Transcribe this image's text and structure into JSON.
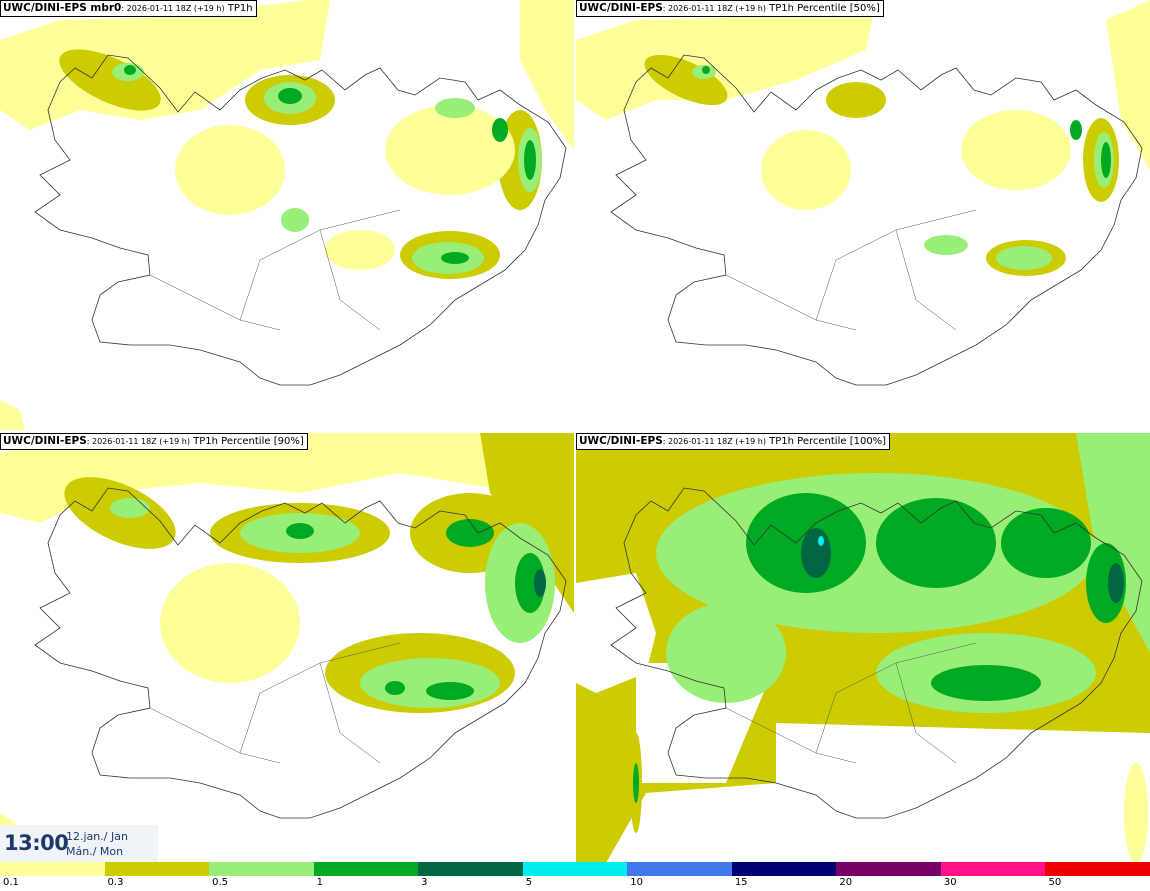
{
  "panels": [
    {
      "model": "UWC/DINI-EPS mbr0",
      "run": ": 2026-01-11 18Z (+19 h)",
      "field": " TP1h"
    },
    {
      "model": "UWC/DINI-EPS",
      "run": ": 2026-01-11 18Z (+19 h)",
      "field": " TP1h Percentile [50%]"
    },
    {
      "model": "UWC/DINI-EPS",
      "run": ": 2026-01-11 18Z (+19 h)",
      "field": " TP1h Percentile [90%]"
    },
    {
      "model": "UWC/DINI-EPS",
      "run": ": 2026-01-11 18Z (+19 h)",
      "field": " TP1h Percentile [100%]"
    }
  ],
  "clock": {
    "time": "13:00",
    "date": "12.jan./ Jan",
    "day": "Mán./ Mon"
  },
  "legend": {
    "ticks": [
      "0.1",
      "0.3",
      "0.5",
      "1",
      "3",
      "5",
      "10",
      "15",
      "20",
      "30",
      "50"
    ],
    "colors": [
      "#ffff99",
      "#cccc00",
      "#99ee77",
      "#00aa22",
      "#006644",
      "#00eeee",
      "#4477ee",
      "#000077",
      "#770066",
      "#ff1188",
      "#ee0000"
    ]
  }
}
